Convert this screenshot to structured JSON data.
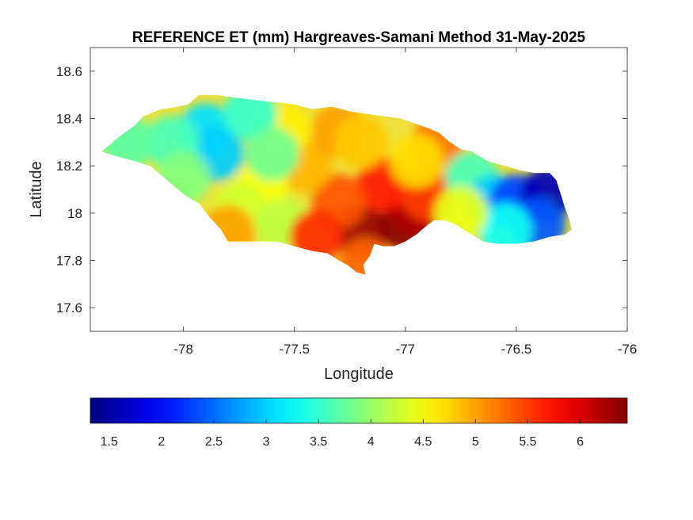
{
  "chart_data": {
    "type": "heatmap",
    "title": "REFERENCE ET (mm) Hargreaves-Samani Method  31-May-2025",
    "xlabel": "Longitude",
    "ylabel": "Latitude",
    "xlim": [
      -78.42,
      -76.0
    ],
    "ylim": [
      17.5,
      18.7
    ],
    "xticks": [
      -78,
      -77.5,
      -77,
      -76.5,
      -76
    ],
    "xtick_labels": [
      "-78",
      "-77.5",
      "-77",
      "-76.5",
      "-76"
    ],
    "yticks": [
      17.6,
      17.8,
      18,
      18.2,
      18.4,
      18.6
    ],
    "ytick_labels": [
      "17.6",
      "17.8",
      "18",
      "18.2",
      "18.4",
      "18.6"
    ],
    "grid": false,
    "colormap": "jet",
    "colorbar": {
      "orientation": "horizontal",
      "placement": "bottom",
      "clim": [
        1.32,
        6.45
      ],
      "ticks": [
        1.5,
        2,
        2.5,
        3,
        3.5,
        4,
        4.5,
        5,
        5.5,
        6
      ],
      "tick_labels": [
        "1.5",
        "2",
        "2.5",
        "3",
        "3.5",
        "4",
        "4.5",
        "5",
        "5.5",
        "6"
      ]
    },
    "outline": [
      [
        -78.37,
        18.26
      ],
      [
        -78.33,
        18.29
      ],
      [
        -78.28,
        18.33
      ],
      [
        -78.22,
        18.37
      ],
      [
        -78.18,
        18.41
      ],
      [
        -78.1,
        18.44
      ],
      [
        -78.03,
        18.45
      ],
      [
        -77.98,
        18.46
      ],
      [
        -77.93,
        18.5
      ],
      [
        -77.85,
        18.5
      ],
      [
        -77.78,
        18.49
      ],
      [
        -77.7,
        18.48
      ],
      [
        -77.6,
        18.47
      ],
      [
        -77.5,
        18.46
      ],
      [
        -77.42,
        18.44
      ],
      [
        -77.33,
        18.45
      ],
      [
        -77.25,
        18.43
      ],
      [
        -77.18,
        18.42
      ],
      [
        -77.1,
        18.41
      ],
      [
        -77.02,
        18.4
      ],
      [
        -76.96,
        18.38
      ],
      [
        -76.9,
        18.36
      ],
      [
        -76.85,
        18.34
      ],
      [
        -76.8,
        18.3
      ],
      [
        -76.75,
        18.27
      ],
      [
        -76.7,
        18.26
      ],
      [
        -76.63,
        18.22
      ],
      [
        -76.55,
        18.2
      ],
      [
        -76.48,
        18.18
      ],
      [
        -76.42,
        18.17
      ],
      [
        -76.35,
        18.17
      ],
      [
        -76.32,
        18.14
      ],
      [
        -76.3,
        18.08
      ],
      [
        -76.28,
        18.02
      ],
      [
        -76.26,
        17.97
      ],
      [
        -76.25,
        17.93
      ],
      [
        -76.28,
        17.91
      ],
      [
        -76.35,
        17.9
      ],
      [
        -76.42,
        17.88
      ],
      [
        -76.5,
        17.87
      ],
      [
        -76.58,
        17.87
      ],
      [
        -76.65,
        17.88
      ],
      [
        -76.72,
        17.92
      ],
      [
        -76.77,
        17.95
      ],
      [
        -76.82,
        17.97
      ],
      [
        -76.87,
        17.97
      ],
      [
        -76.9,
        17.95
      ],
      [
        -76.95,
        17.91
      ],
      [
        -77.0,
        17.88
      ],
      [
        -77.05,
        17.86
      ],
      [
        -77.1,
        17.86
      ],
      [
        -77.14,
        17.87
      ],
      [
        -77.16,
        17.82
      ],
      [
        -77.19,
        17.78
      ],
      [
        -77.18,
        17.74
      ],
      [
        -77.22,
        17.75
      ],
      [
        -77.26,
        17.78
      ],
      [
        -77.3,
        17.8
      ],
      [
        -77.35,
        17.83
      ],
      [
        -77.42,
        17.84
      ],
      [
        -77.5,
        17.86
      ],
      [
        -77.58,
        17.88
      ],
      [
        -77.66,
        17.88
      ],
      [
        -77.74,
        17.88
      ],
      [
        -77.8,
        17.88
      ],
      [
        -77.83,
        17.93
      ],
      [
        -77.88,
        17.98
      ],
      [
        -77.93,
        18.04
      ],
      [
        -78.0,
        18.08
      ],
      [
        -78.05,
        18.12
      ],
      [
        -78.1,
        18.16
      ],
      [
        -78.15,
        18.2
      ],
      [
        -78.22,
        18.22
      ],
      [
        -78.3,
        18.24
      ]
    ],
    "annotations": [
      {
        "lon": -77.2,
        "lat": 17.92,
        "value": 6.3
      },
      {
        "lon": -77.0,
        "lat": 17.95,
        "value": 6.4
      },
      {
        "lon": -76.95,
        "lat": 18.02,
        "value": 6.2
      },
      {
        "lon": -77.1,
        "lat": 18.12,
        "value": 5.7
      },
      {
        "lon": -76.9,
        "lat": 18.08,
        "value": 5.5
      },
      {
        "lon": -77.3,
        "lat": 18.05,
        "value": 5.4
      },
      {
        "lon": -77.45,
        "lat": 18.2,
        "value": 4.9
      },
      {
        "lon": -77.3,
        "lat": 18.35,
        "value": 5.0
      },
      {
        "lon": -77.2,
        "lat": 18.3,
        "value": 4.8
      },
      {
        "lon": -76.85,
        "lat": 18.3,
        "value": 5.2
      },
      {
        "lon": -76.95,
        "lat": 18.22,
        "value": 4.7
      },
      {
        "lon": -77.55,
        "lat": 18.35,
        "value": 4.6
      },
      {
        "lon": -77.65,
        "lat": 18.1,
        "value": 4.5
      },
      {
        "lon": -77.75,
        "lat": 18.02,
        "value": 4.3
      },
      {
        "lon": -77.8,
        "lat": 17.92,
        "value": 5.0
      },
      {
        "lon": -77.9,
        "lat": 18.35,
        "value": 3.1
      },
      {
        "lon": -77.85,
        "lat": 18.25,
        "value": 3.0
      },
      {
        "lon": -78.05,
        "lat": 18.3,
        "value": 3.6
      },
      {
        "lon": -78.25,
        "lat": 18.3,
        "value": 3.7
      },
      {
        "lon": -77.7,
        "lat": 18.42,
        "value": 3.5
      },
      {
        "lon": -76.7,
        "lat": 18.15,
        "value": 3.6
      },
      {
        "lon": -76.6,
        "lat": 18.05,
        "value": 3.0
      },
      {
        "lon": -76.5,
        "lat": 18.05,
        "value": 2.3
      },
      {
        "lon": -76.36,
        "lat": 18.08,
        "value": 1.6
      },
      {
        "lon": -76.4,
        "lat": 17.95,
        "value": 2.4
      },
      {
        "lon": -76.55,
        "lat": 17.93,
        "value": 3.3
      },
      {
        "lon": -76.75,
        "lat": 18.0,
        "value": 4.4
      },
      {
        "lon": -77.55,
        "lat": 17.95,
        "value": 4.2
      },
      {
        "lon": -77.4,
        "lat": 17.9,
        "value": 5.6
      },
      {
        "lon": -77.18,
        "lat": 17.78,
        "value": 5.3
      },
      {
        "lon": -78.0,
        "lat": 18.15,
        "value": 3.9
      },
      {
        "lon": -77.6,
        "lat": 18.25,
        "value": 3.8
      }
    ]
  }
}
